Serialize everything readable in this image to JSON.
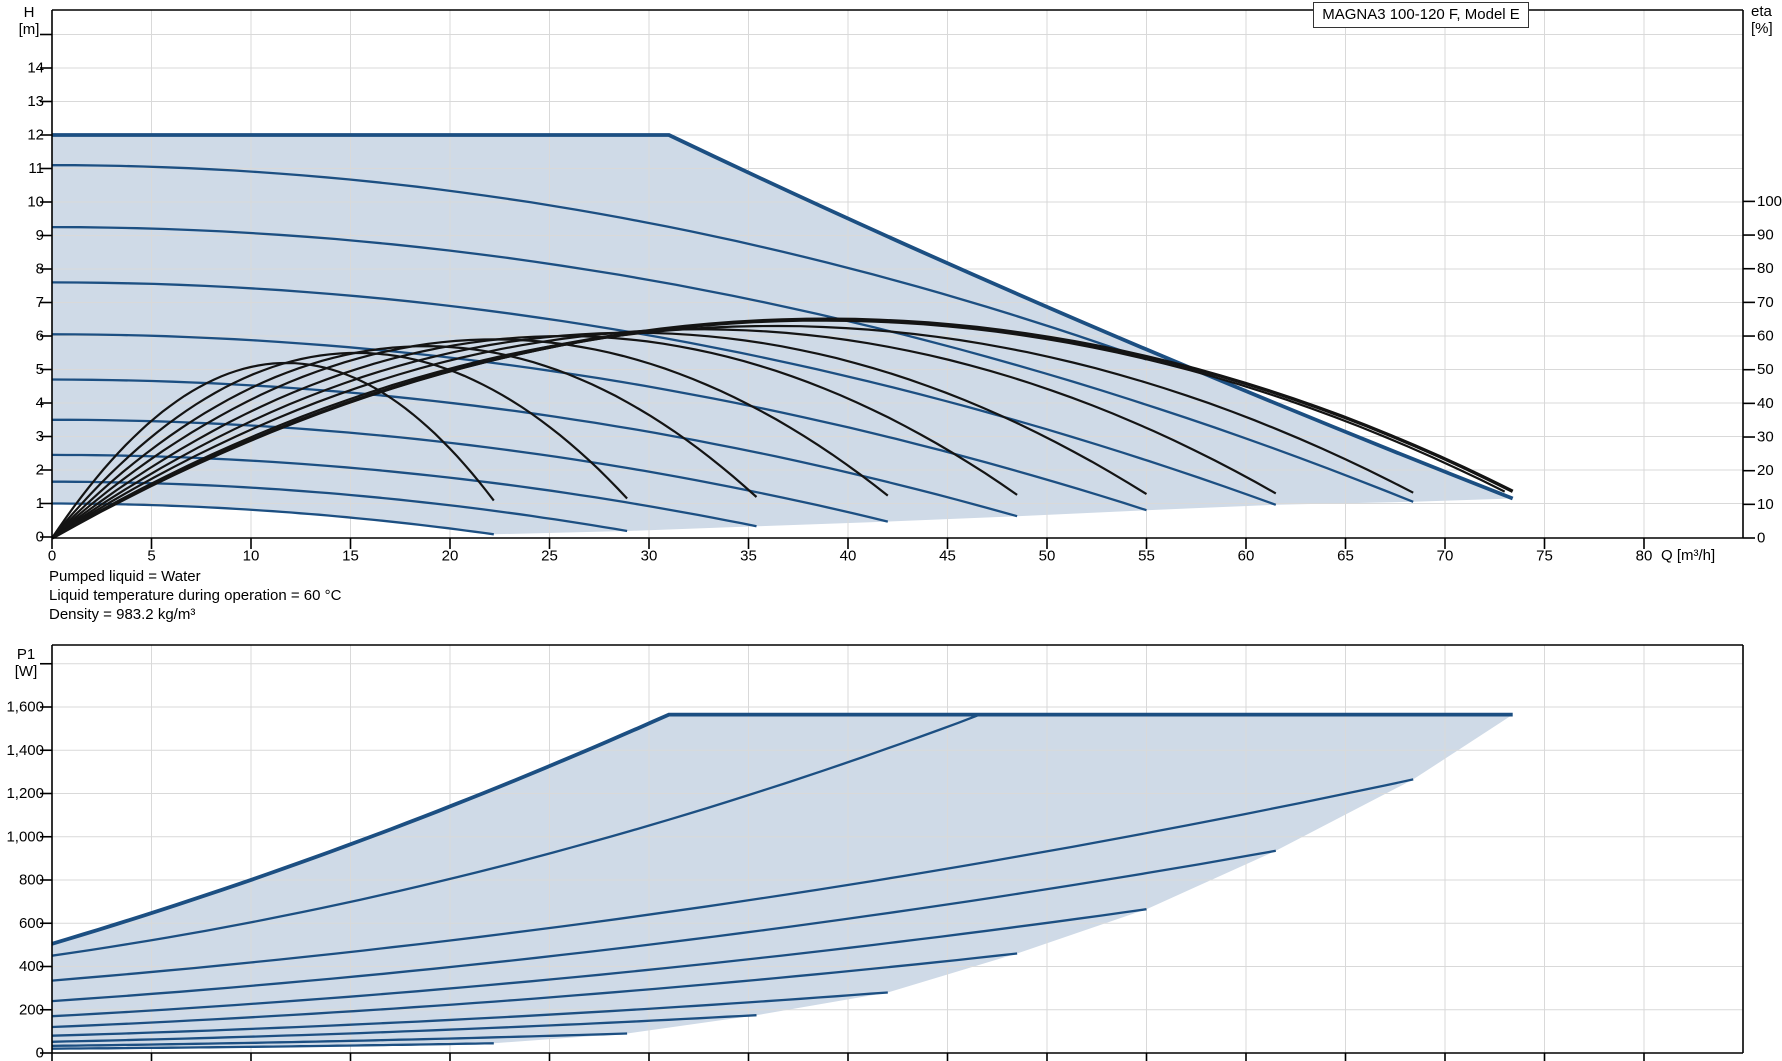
{
  "title": "MAGNA3 100-120 F, Model E",
  "info_lines": [
    "Pumped liquid = Water",
    "Liquid temperature during operation = 60 °C",
    "Density = 983.2 kg/m³"
  ],
  "top_chart": {
    "y_axis_label": [
      "H",
      "[m]"
    ],
    "right_axis_label": [
      "eta",
      "[%]"
    ],
    "x_axis_label": "Q [m³/h]",
    "h_ticks": [
      0,
      1,
      2,
      3,
      4,
      5,
      6,
      7,
      8,
      9,
      10,
      11,
      12,
      13,
      14
    ],
    "eta_ticks": [
      0,
      10,
      20,
      30,
      40,
      50,
      60,
      70,
      80,
      90,
      100
    ],
    "x_ticks": [
      0,
      5,
      10,
      15,
      20,
      25,
      30,
      35,
      40,
      45,
      50,
      55,
      60,
      65,
      70,
      75,
      80
    ]
  },
  "bottom_chart": {
    "y_axis_label": [
      "P1",
      "[W]"
    ],
    "p_ticks": [
      0,
      200,
      400,
      600,
      800,
      1000,
      1200,
      1400,
      1600
    ]
  },
  "chart_data": {
    "type": "line",
    "title": "MAGNA3 100-120 F, Model E",
    "x_axis": {
      "label": "Q [m³/h]",
      "min": 0,
      "max": 85,
      "grid_step": 5
    },
    "hq_chart": {
      "ylabel": "H [m]",
      "ylim": [
        0,
        15.7
      ],
      "grid": true,
      "eta_axis": {
        "label": "eta [%]",
        "min": 0,
        "max": 100
      },
      "max_speed_curve": {
        "h_limit": 12,
        "knee_q": 31,
        "q_end": 73.4,
        "h_end": 1.15,
        "eta_max": 65
      },
      "speed_curves": [
        {
          "h0": 1.0,
          "q_end": 22.2,
          "h_end": 0.08,
          "eta_max": 52
        },
        {
          "h0": 1.65,
          "q_end": 28.9,
          "h_end": 0.18,
          "eta_max": 55
        },
        {
          "h0": 2.45,
          "q_end": 35.4,
          "h_end": 0.32,
          "eta_max": 57
        },
        {
          "h0": 3.5,
          "q_end": 42.0,
          "h_end": 0.46,
          "eta_max": 59
        },
        {
          "h0": 4.7,
          "q_end": 48.5,
          "h_end": 0.62,
          "eta_max": 60
        },
        {
          "h0": 6.05,
          "q_end": 55.0,
          "h_end": 0.8,
          "eta_max": 61
        },
        {
          "h0": 7.6,
          "q_end": 61.5,
          "h_end": 0.96,
          "eta_max": 62
        },
        {
          "h0": 9.25,
          "q_end": 68.4,
          "h_end": 1.05,
          "eta_max": 63
        },
        {
          "h0": 11.1,
          "q_end": 55.0,
          "h_end": 5.3,
          "eta_max": 64.6,
          "eta_q_end": 73.0,
          "merges_into_envelope": true
        }
      ]
    },
    "power_chart": {
      "ylabel": "P1 [W]",
      "ylim": [
        0,
        1880
      ],
      "grid": true,
      "max_speed_curve": {
        "p0": 505,
        "knee_q": 31,
        "p_limit": 1565,
        "q_end": 73.4
      },
      "speed_curves": [
        {
          "p0": 20,
          "q_end": 22.2,
          "p_end": 45
        },
        {
          "p0": 33,
          "q_end": 28.9,
          "p_end": 90
        },
        {
          "p0": 52,
          "q_end": 35.4,
          "p_end": 175
        },
        {
          "p0": 80,
          "q_end": 42.0,
          "p_end": 280
        },
        {
          "p0": 120,
          "q_end": 48.5,
          "p_end": 460
        },
        {
          "p0": 170,
          "q_end": 55.0,
          "p_end": 665
        },
        {
          "p0": 240,
          "q_end": 61.5,
          "p_end": 935
        },
        {
          "p0": 335,
          "q_end": 68.4,
          "p_end": 1265
        },
        {
          "p0": 450,
          "q_end": 46.5,
          "p_end": 1560,
          "merges_into_envelope": true
        }
      ]
    },
    "colors": {
      "curve_blue": "#1c4f82",
      "fill_blue": "#cfdae7",
      "eta_black": "#141414",
      "grid": "#d9d9d9",
      "axis": "#000000"
    },
    "legend_position": "none"
  }
}
